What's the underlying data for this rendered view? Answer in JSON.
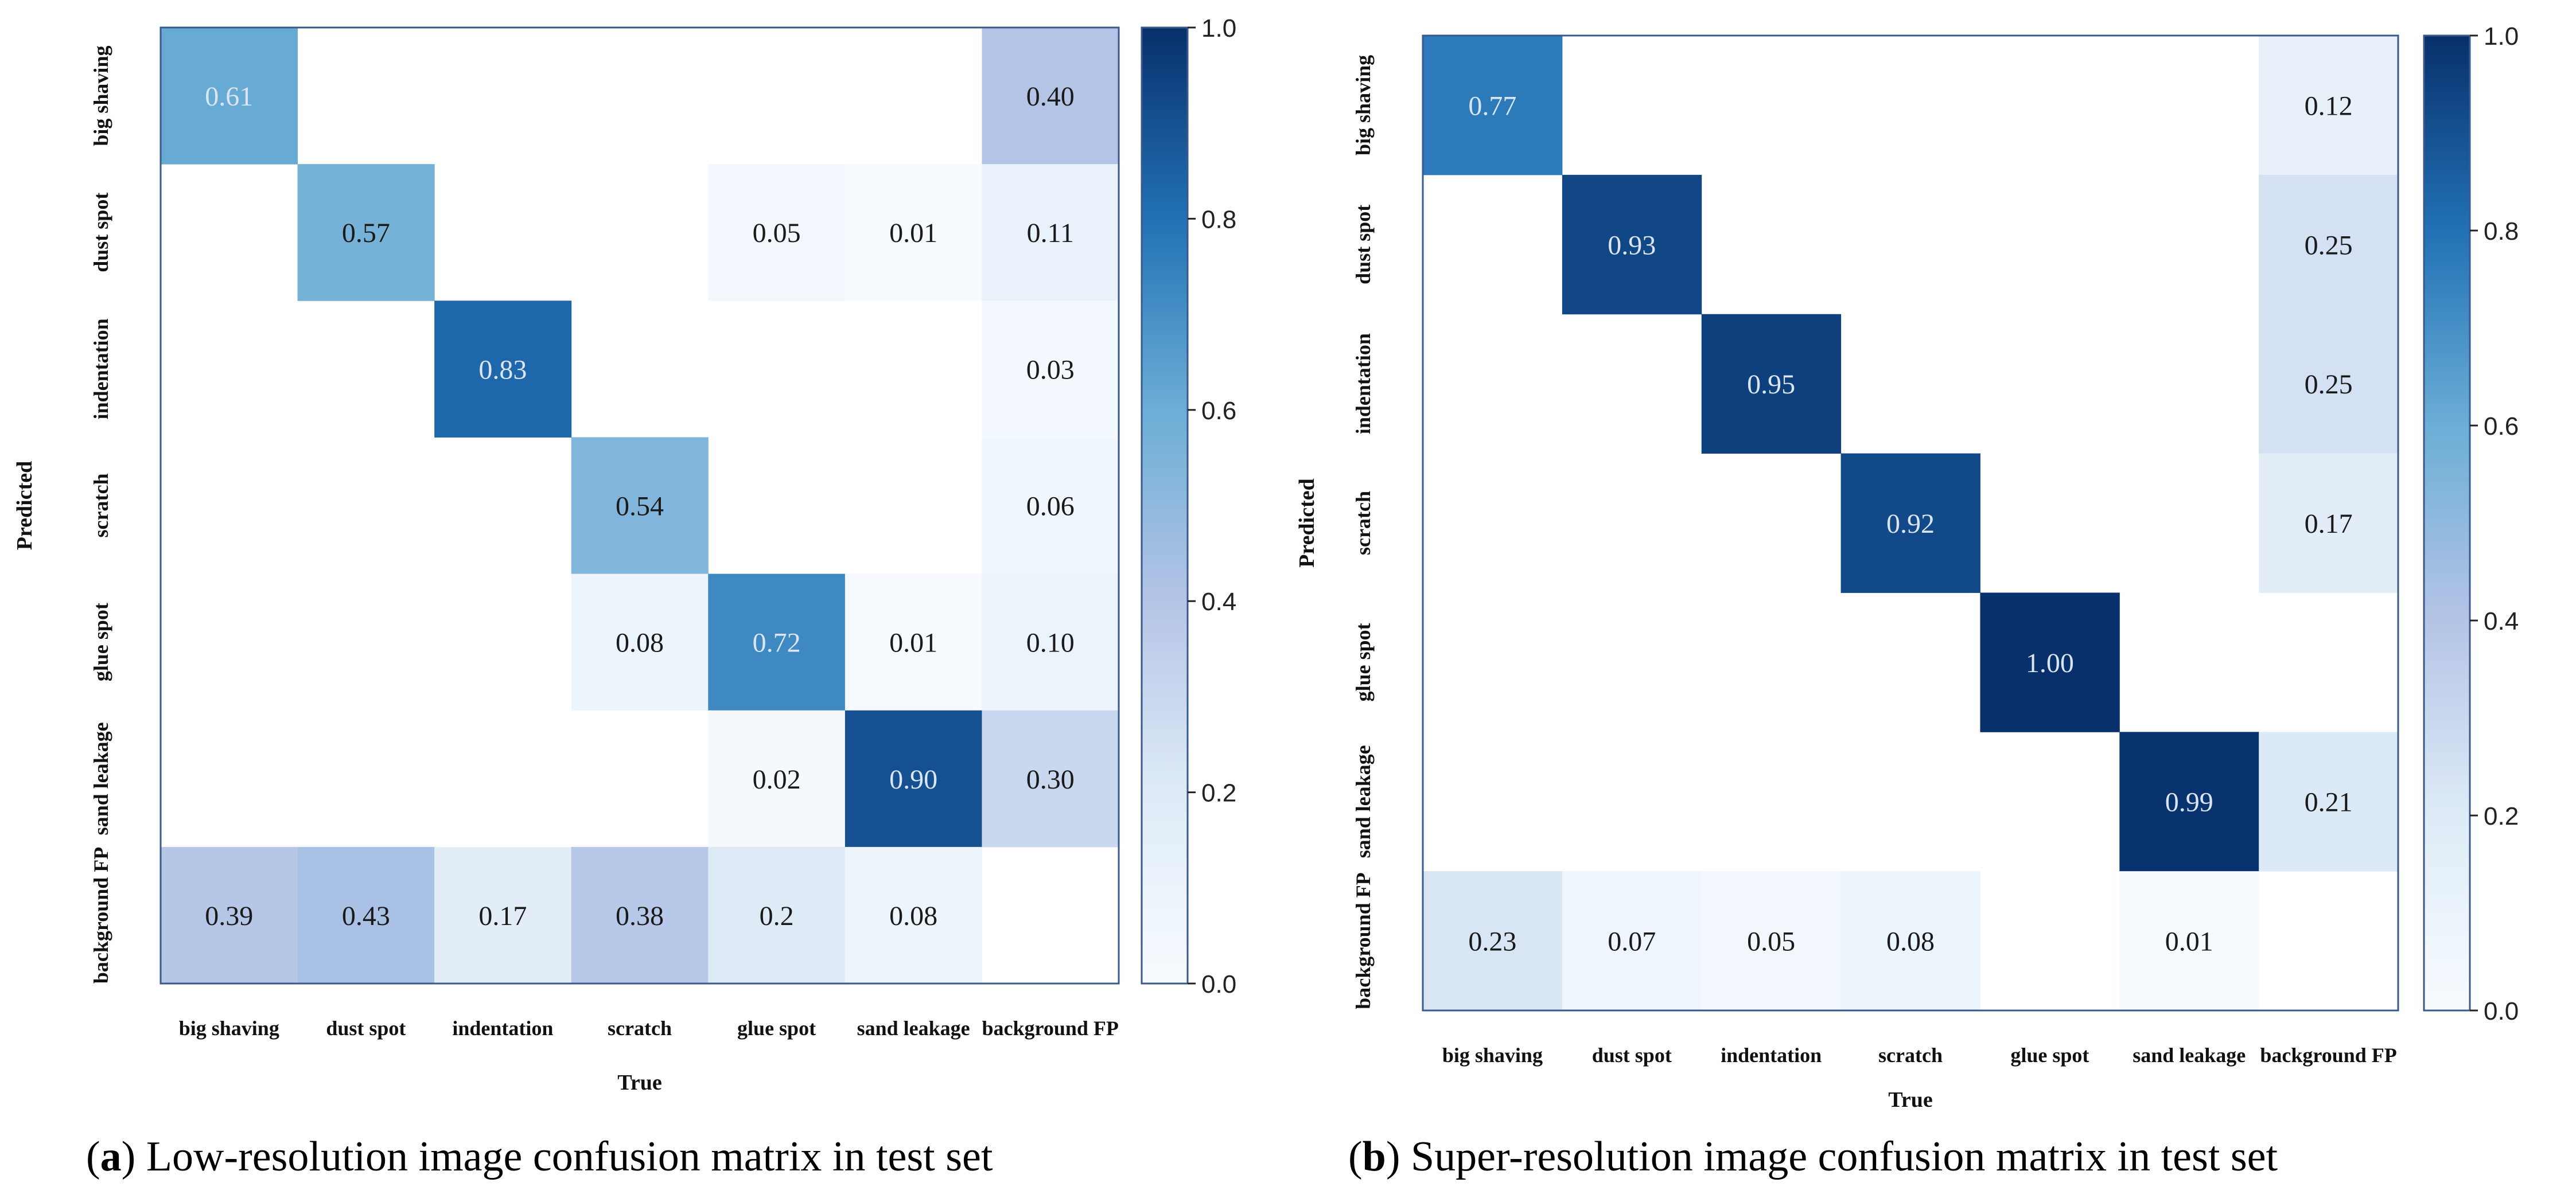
{
  "figure": {
    "panels": [
      {
        "label": "a",
        "caption": "Low-resolution image confusion matrix in test set"
      },
      {
        "label": "b",
        "caption": "Super-resolution image confusion matrix in test set"
      }
    ]
  },
  "chart_data": [
    {
      "type": "heatmap",
      "title": "",
      "xlabel": "True",
      "ylabel": "Predicted",
      "x_categories": [
        "big shaving",
        "dust spot",
        "indentation",
        "scratch",
        "glue spot",
        "sand leakage",
        "background FP"
      ],
      "y_categories": [
        "big shaving",
        "dust spot",
        "indentation",
        "scratch",
        "glue spot",
        "sand leakage",
        "background FP"
      ],
      "cells": [
        [
          0.61,
          null,
          null,
          null,
          null,
          null,
          0.4
        ],
        [
          null,
          0.57,
          null,
          null,
          0.05,
          0.01,
          0.11
        ],
        [
          null,
          null,
          0.83,
          null,
          null,
          null,
          0.03
        ],
        [
          null,
          null,
          null,
          0.54,
          null,
          null,
          0.06
        ],
        [
          null,
          null,
          null,
          0.08,
          0.72,
          0.01,
          0.1
        ],
        [
          null,
          null,
          null,
          null,
          0.02,
          0.9,
          0.3
        ],
        [
          0.39,
          0.43,
          0.17,
          0.38,
          0.2,
          0.08,
          null
        ]
      ],
      "cell_labels": [
        [
          "0.61",
          "",
          "",
          "",
          "",
          "",
          "0.40"
        ],
        [
          "",
          "0.57",
          "",
          "",
          "0.05",
          "0.01",
          "0.11"
        ],
        [
          "",
          "",
          "0.83",
          "",
          "",
          "",
          "0.03"
        ],
        [
          "",
          "",
          "",
          "0.54",
          "",
          "",
          "0.06"
        ],
        [
          "",
          "",
          "",
          "0.08",
          "0.72",
          "0.01",
          "0.10"
        ],
        [
          "",
          "",
          "",
          "",
          "0.02",
          "0.90",
          "0.30"
        ],
        [
          "0.39",
          "0.43",
          "0.17",
          "0.38",
          "0.2",
          "0.08",
          ""
        ]
      ],
      "colorbar": {
        "min": 0.0,
        "max": 1.0,
        "ticks": [
          "0.0",
          "0.2",
          "0.4",
          "0.6",
          "0.8",
          "1.0"
        ],
        "colormap": "Blues"
      }
    },
    {
      "type": "heatmap",
      "title": "",
      "xlabel": "True",
      "ylabel": "Predicted",
      "x_categories": [
        "big shaving",
        "dust spot",
        "indentation",
        "scratch",
        "glue spot",
        "sand leakage",
        "background FP"
      ],
      "y_categories": [
        "big shaving",
        "dust spot",
        "indentation",
        "scratch",
        "glue spot",
        "sand leakage",
        "background FP"
      ],
      "cells": [
        [
          0.77,
          null,
          null,
          null,
          null,
          null,
          0.12
        ],
        [
          null,
          0.93,
          null,
          null,
          null,
          null,
          0.25
        ],
        [
          null,
          null,
          0.95,
          null,
          null,
          null,
          0.25
        ],
        [
          null,
          null,
          null,
          0.92,
          null,
          null,
          0.17
        ],
        [
          null,
          null,
          null,
          null,
          1.0,
          null,
          null
        ],
        [
          null,
          null,
          null,
          null,
          null,
          0.99,
          0.21
        ],
        [
          0.23,
          0.07,
          0.05,
          0.08,
          null,
          0.01,
          null
        ]
      ],
      "cell_labels": [
        [
          "0.77",
          "",
          "",
          "",
          "",
          "",
          "0.12"
        ],
        [
          "",
          "0.93",
          "",
          "",
          "",
          "",
          "0.25"
        ],
        [
          "",
          "",
          "0.95",
          "",
          "",
          "",
          "0.25"
        ],
        [
          "",
          "",
          "",
          "0.92",
          "",
          "",
          "0.17"
        ],
        [
          "",
          "",
          "",
          "",
          "1.00",
          "",
          ""
        ],
        [
          "",
          "",
          "",
          "",
          "",
          "0.99",
          "0.21"
        ],
        [
          "0.23",
          "0.07",
          "0.05",
          "0.08",
          "",
          "0.01",
          ""
        ]
      ],
      "colorbar": {
        "min": 0.0,
        "max": 1.0,
        "ticks": [
          "0.0",
          "0.2",
          "0.4",
          "0.6",
          "0.8",
          "1.0"
        ],
        "colormap": "Blues"
      }
    }
  ]
}
